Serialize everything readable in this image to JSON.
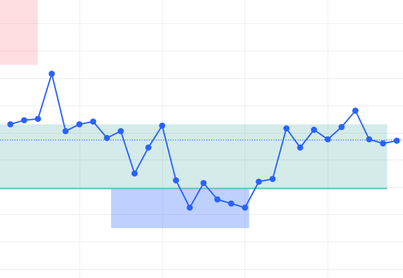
{
  "chart_data": {
    "type": "line",
    "title": "",
    "xlabel": "",
    "ylabel": "",
    "xlim": [
      -0.75,
      28.45
    ],
    "ylim": [
      -7.65,
      12.7
    ],
    "x": [
      0,
      1,
      2,
      3,
      4,
      5,
      6,
      7,
      8,
      9,
      10,
      11,
      12,
      13,
      14,
      15,
      16,
      17,
      18,
      19,
      20,
      21,
      22,
      23,
      24,
      25,
      26,
      27,
      28
    ],
    "series": [
      {
        "name": "",
        "color": "#2962ff",
        "values": [
          3.6,
          3.9,
          4.0,
          7.3,
          3.1,
          3.6,
          3.8,
          2.6,
          3.1,
          0.0,
          1.9,
          3.5,
          -0.5,
          -2.5,
          -0.7,
          -1.9,
          -2.2,
          -2.5,
          -0.6,
          -0.4,
          3.3,
          1.9,
          3.2,
          2.5,
          3.4,
          4.6,
          2.5,
          2.2,
          2.4
        ]
      }
    ],
    "reference_line": {
      "value": 2.45,
      "style": "dotted",
      "color": "#2962ff"
    },
    "bands": [
      {
        "x_from": -0.75,
        "x_to": 27.3,
        "y_from": -1.15,
        "y_to": 3.6,
        "color": "#2a9d8f",
        "opacity": 0.2,
        "bottom_edge_color": "#5ec4b6"
      },
      {
        "x_from": -0.75,
        "x_to": 2.0,
        "y_from": 7.95,
        "y_to": 12.7,
        "color": "#ff5a6a",
        "opacity": 0.2
      },
      {
        "x_from": 7.3,
        "x_to": 17.3,
        "y_from": -1.15,
        "y_to": -4.0,
        "color": "#2962ff",
        "opacity": 0.3
      }
    ],
    "grid": true,
    "grid_color": "#eeeeee",
    "legend": "none"
  }
}
